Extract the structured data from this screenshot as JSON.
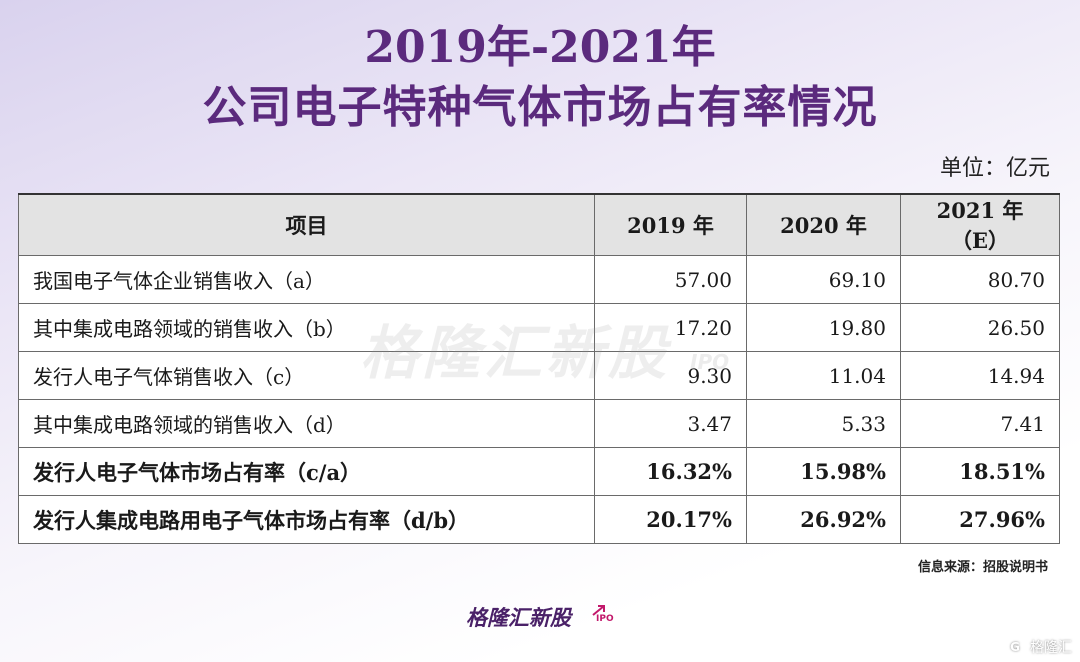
{
  "chart_data": {
    "type": "table",
    "title_line1": "2019年-2021年",
    "title_line2": "公司电子特种气体市场占有率情况",
    "unit": "单位：亿元",
    "columns": [
      "项目",
      "2019 年",
      "2020 年",
      "2021 年（E）"
    ],
    "rows": [
      {
        "label": "我国电子气体企业销售收入（a）",
        "values": [
          "57.00",
          "69.10",
          "80.70"
        ],
        "bold": false
      },
      {
        "label": "其中集成电路领域的销售收入（b）",
        "values": [
          "17.20",
          "19.80",
          "26.50"
        ],
        "bold": false
      },
      {
        "label": "发行人电子气体销售收入（c）",
        "values": [
          "9.30",
          "11.04",
          "14.94"
        ],
        "bold": false
      },
      {
        "label": "其中集成电路领域的销售收入（d）",
        "values": [
          "3.47",
          "5.33",
          "7.41"
        ],
        "bold": false
      },
      {
        "label": "发行人电子气体市场占有率（c/a）",
        "values": [
          "16.32%",
          "15.98%",
          "18.51%"
        ],
        "bold": true
      },
      {
        "label": "发行人集成电路用电子气体市场占有率（d/b）",
        "values": [
          "20.17%",
          "26.92%",
          "27.96%"
        ],
        "bold": true
      }
    ],
    "source": "信息来源：招股说明书"
  },
  "watermark": {
    "text": "格隆汇新股",
    "sub": "IPO"
  },
  "brand": {
    "text": "格隆汇新股",
    "sub": "IPO"
  },
  "corner": {
    "text": "格隆汇"
  },
  "colors": {
    "title": "#5b2a7d",
    "header_bg": "#e3e3e3",
    "brand_accent": "#c2186b"
  },
  "icons": {
    "arrow": "arrow-up-right-icon",
    "corner": "g-logo-icon"
  }
}
